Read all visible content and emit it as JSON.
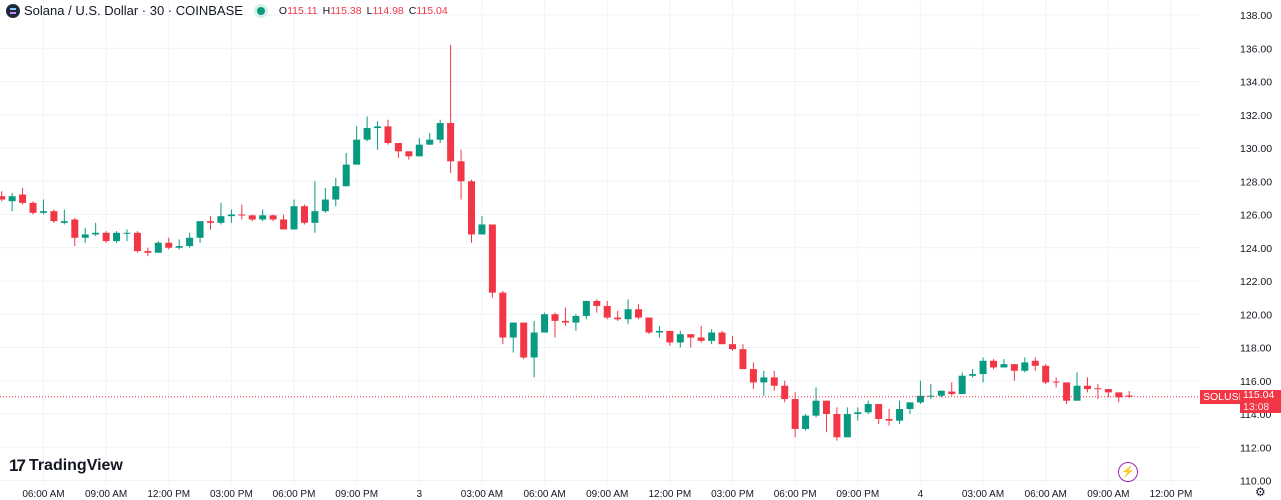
{
  "header": {
    "title": "Solana / U.S. Dollar · 30 · COINBASE",
    "o_label": "O",
    "o": "115.11",
    "h_label": "H",
    "h": "115.38",
    "l_label": "L",
    "l": "114.98",
    "c_label": "C",
    "c": "115.04"
  },
  "branding": {
    "logo_text": "TradingView"
  },
  "price_label": {
    "symbol": "SOLUSD",
    "price": "115.04",
    "countdown": "13:08"
  },
  "icons": {
    "settings": "gear-icon",
    "assistant": "lightning-icon"
  },
  "colors": {
    "up": "#089981",
    "down": "#f23645",
    "grid": "#f0f3fa",
    "text": "#131722"
  },
  "chart_data": {
    "type": "candlestick",
    "interval": "30",
    "ylim": [
      110,
      138
    ],
    "grid": true,
    "y_ticks": [
      "110.00",
      "112.00",
      "114.00",
      "116.00",
      "118.00",
      "120.00",
      "122.00",
      "124.00",
      "126.00",
      "128.00",
      "130.00",
      "132.00",
      "134.00",
      "136.00",
      "138.00"
    ],
    "x_ticks": [
      "06:00 AM",
      "09:00 AM",
      "12:00 PM",
      "03:00 PM",
      "06:00 PM",
      "09:00 PM",
      "3",
      "03:00 AM",
      "06:00 AM",
      "09:00 AM",
      "12:00 PM",
      "03:00 PM",
      "06:00 PM",
      "09:00 PM",
      "4",
      "03:00 AM",
      "06:00 AM",
      "09:00 AM",
      "12:00 PM"
    ],
    "last_price": 115.04,
    "ohlc": [
      [
        127.1,
        127.4,
        126.8,
        126.9
      ],
      [
        126.8,
        127.3,
        126.2,
        127.1
      ],
      [
        127.2,
        127.6,
        126.6,
        126.7
      ],
      [
        126.7,
        126.8,
        126.0,
        126.1
      ],
      [
        126.1,
        126.9,
        126.0,
        126.2
      ],
      [
        126.2,
        126.3,
        125.5,
        125.6
      ],
      [
        125.5,
        126.3,
        125.4,
        125.6
      ],
      [
        125.7,
        125.8,
        124.1,
        124.6
      ],
      [
        124.6,
        125.2,
        124.3,
        124.8
      ],
      [
        124.8,
        125.5,
        124.7,
        124.9
      ],
      [
        124.9,
        125.0,
        124.3,
        124.4
      ],
      [
        124.4,
        125.0,
        124.3,
        124.9
      ],
      [
        124.9,
        125.1,
        124.4,
        124.9
      ],
      [
        124.9,
        125.0,
        123.7,
        123.8
      ],
      [
        123.8,
        124.0,
        123.5,
        123.7
      ],
      [
        123.7,
        124.4,
        123.7,
        124.3
      ],
      [
        124.3,
        124.6,
        123.9,
        124.0
      ],
      [
        124.0,
        124.5,
        123.9,
        124.1
      ],
      [
        124.1,
        124.9,
        124.0,
        124.6
      ],
      [
        124.6,
        125.6,
        124.3,
        125.6
      ],
      [
        125.6,
        125.9,
        125.1,
        125.5
      ],
      [
        125.5,
        126.7,
        125.4,
        125.9
      ],
      [
        125.9,
        126.3,
        125.5,
        126.0
      ],
      [
        126.0,
        126.6,
        125.7,
        125.95
      ],
      [
        125.95,
        126.0,
        125.6,
        125.7
      ],
      [
        125.7,
        126.3,
        125.6,
        125.95
      ],
      [
        125.95,
        126.0,
        125.6,
        125.7
      ],
      [
        125.7,
        126.0,
        125.1,
        125.1
      ],
      [
        125.1,
        126.9,
        125.1,
        126.5
      ],
      [
        126.5,
        126.6,
        125.4,
        125.5
      ],
      [
        125.5,
        128.0,
        124.9,
        126.2
      ],
      [
        126.2,
        127.6,
        126.1,
        126.9
      ],
      [
        126.9,
        128.2,
        126.5,
        127.7
      ],
      [
        127.7,
        129.7,
        127.7,
        129.0
      ],
      [
        129.0,
        131.3,
        129.0,
        130.5
      ],
      [
        130.5,
        131.9,
        130.4,
        131.2
      ],
      [
        131.2,
        131.6,
        129.9,
        131.3
      ],
      [
        131.3,
        131.7,
        130.2,
        130.3
      ],
      [
        130.3,
        130.3,
        129.4,
        129.8
      ],
      [
        129.8,
        129.8,
        129.3,
        129.5
      ],
      [
        129.5,
        130.6,
        129.5,
        130.2
      ],
      [
        130.2,
        130.9,
        130.2,
        130.5
      ],
      [
        130.5,
        131.7,
        130.3,
        131.5
      ],
      [
        131.5,
        136.2,
        128.5,
        129.2
      ],
      [
        129.2,
        129.9,
        126.9,
        128.0
      ],
      [
        128.0,
        128.1,
        124.3,
        124.8
      ],
      [
        124.8,
        125.9,
        124.8,
        125.4
      ],
      [
        125.4,
        125.4,
        121.0,
        121.3
      ],
      [
        121.3,
        121.4,
        118.2,
        118.6
      ],
      [
        118.6,
        119.5,
        117.7,
        119.5
      ],
      [
        119.5,
        119.5,
        117.3,
        117.4
      ],
      [
        117.4,
        119.6,
        116.2,
        118.9
      ],
      [
        118.9,
        120.1,
        118.9,
        120.0
      ],
      [
        120.0,
        120.1,
        118.6,
        119.6
      ],
      [
        119.6,
        120.4,
        119.3,
        119.5
      ],
      [
        119.5,
        120.0,
        119.0,
        119.9
      ],
      [
        119.9,
        120.8,
        119.7,
        120.8
      ],
      [
        120.8,
        120.9,
        120.1,
        120.5
      ],
      [
        120.5,
        120.8,
        119.7,
        119.8
      ],
      [
        119.8,
        120.2,
        119.6,
        119.7
      ],
      [
        119.7,
        120.9,
        119.4,
        120.3
      ],
      [
        120.3,
        120.6,
        119.7,
        119.8
      ],
      [
        119.8,
        119.8,
        118.8,
        118.9
      ],
      [
        118.9,
        119.3,
        118.6,
        119.0
      ],
      [
        119.0,
        119.0,
        118.1,
        118.3
      ],
      [
        118.3,
        119.0,
        118.0,
        118.8
      ],
      [
        118.8,
        118.8,
        118.0,
        118.6
      ],
      [
        118.6,
        119.3,
        118.3,
        118.4
      ],
      [
        118.4,
        119.1,
        118.2,
        118.9
      ],
      [
        118.9,
        119.0,
        118.2,
        118.2
      ],
      [
        118.2,
        118.7,
        117.8,
        117.9
      ],
      [
        117.9,
        118.2,
        116.7,
        116.7
      ],
      [
        116.7,
        117.1,
        115.5,
        115.9
      ],
      [
        115.9,
        116.6,
        115.1,
        116.2
      ],
      [
        116.2,
        116.6,
        115.4,
        115.7
      ],
      [
        115.7,
        116.0,
        114.7,
        114.9
      ],
      [
        114.9,
        115.3,
        112.6,
        113.1
      ],
      [
        113.1,
        114.0,
        113.0,
        113.9
      ],
      [
        113.9,
        115.6,
        113.8,
        114.8
      ],
      [
        114.8,
        114.8,
        112.9,
        114.0
      ],
      [
        114.0,
        114.4,
        112.4,
        112.6
      ],
      [
        112.6,
        114.4,
        112.6,
        114.0
      ],
      [
        114.0,
        114.4,
        113.6,
        114.1
      ],
      [
        114.1,
        114.8,
        114.0,
        114.6
      ],
      [
        114.6,
        114.6,
        113.4,
        113.7
      ],
      [
        113.7,
        114.3,
        113.3,
        113.6
      ],
      [
        113.6,
        114.8,
        113.4,
        114.3
      ],
      [
        114.3,
        114.7,
        114.0,
        114.7
      ],
      [
        114.7,
        116.0,
        114.6,
        115.1
      ],
      [
        115.1,
        115.8,
        114.9,
        115.1
      ],
      [
        115.1,
        115.4,
        115.0,
        115.4
      ],
      [
        115.35,
        115.9,
        115.1,
        115.2
      ],
      [
        115.2,
        116.5,
        115.2,
        116.3
      ],
      [
        116.3,
        116.7,
        116.2,
        116.4
      ],
      [
        116.4,
        117.4,
        115.9,
        117.2
      ],
      [
        117.2,
        117.3,
        116.7,
        116.8
      ],
      [
        116.8,
        117.3,
        116.8,
        117.0
      ],
      [
        117.0,
        117.0,
        116.0,
        116.6
      ],
      [
        116.6,
        117.4,
        116.5,
        117.1
      ],
      [
        117.2,
        117.4,
        116.6,
        116.9
      ],
      [
        116.9,
        117.0,
        115.8,
        115.9
      ],
      [
        115.95,
        116.2,
        115.6,
        115.9
      ],
      [
        115.9,
        115.9,
        114.6,
        114.8
      ],
      [
        114.8,
        116.5,
        114.8,
        115.7
      ],
      [
        115.7,
        116.2,
        115.3,
        115.5
      ],
      [
        115.55,
        115.8,
        114.9,
        115.5
      ],
      [
        115.5,
        115.5,
        115.0,
        115.3
      ],
      [
        115.3,
        115.3,
        114.7,
        115.0
      ],
      [
        115.11,
        115.38,
        114.98,
        115.04
      ]
    ]
  }
}
